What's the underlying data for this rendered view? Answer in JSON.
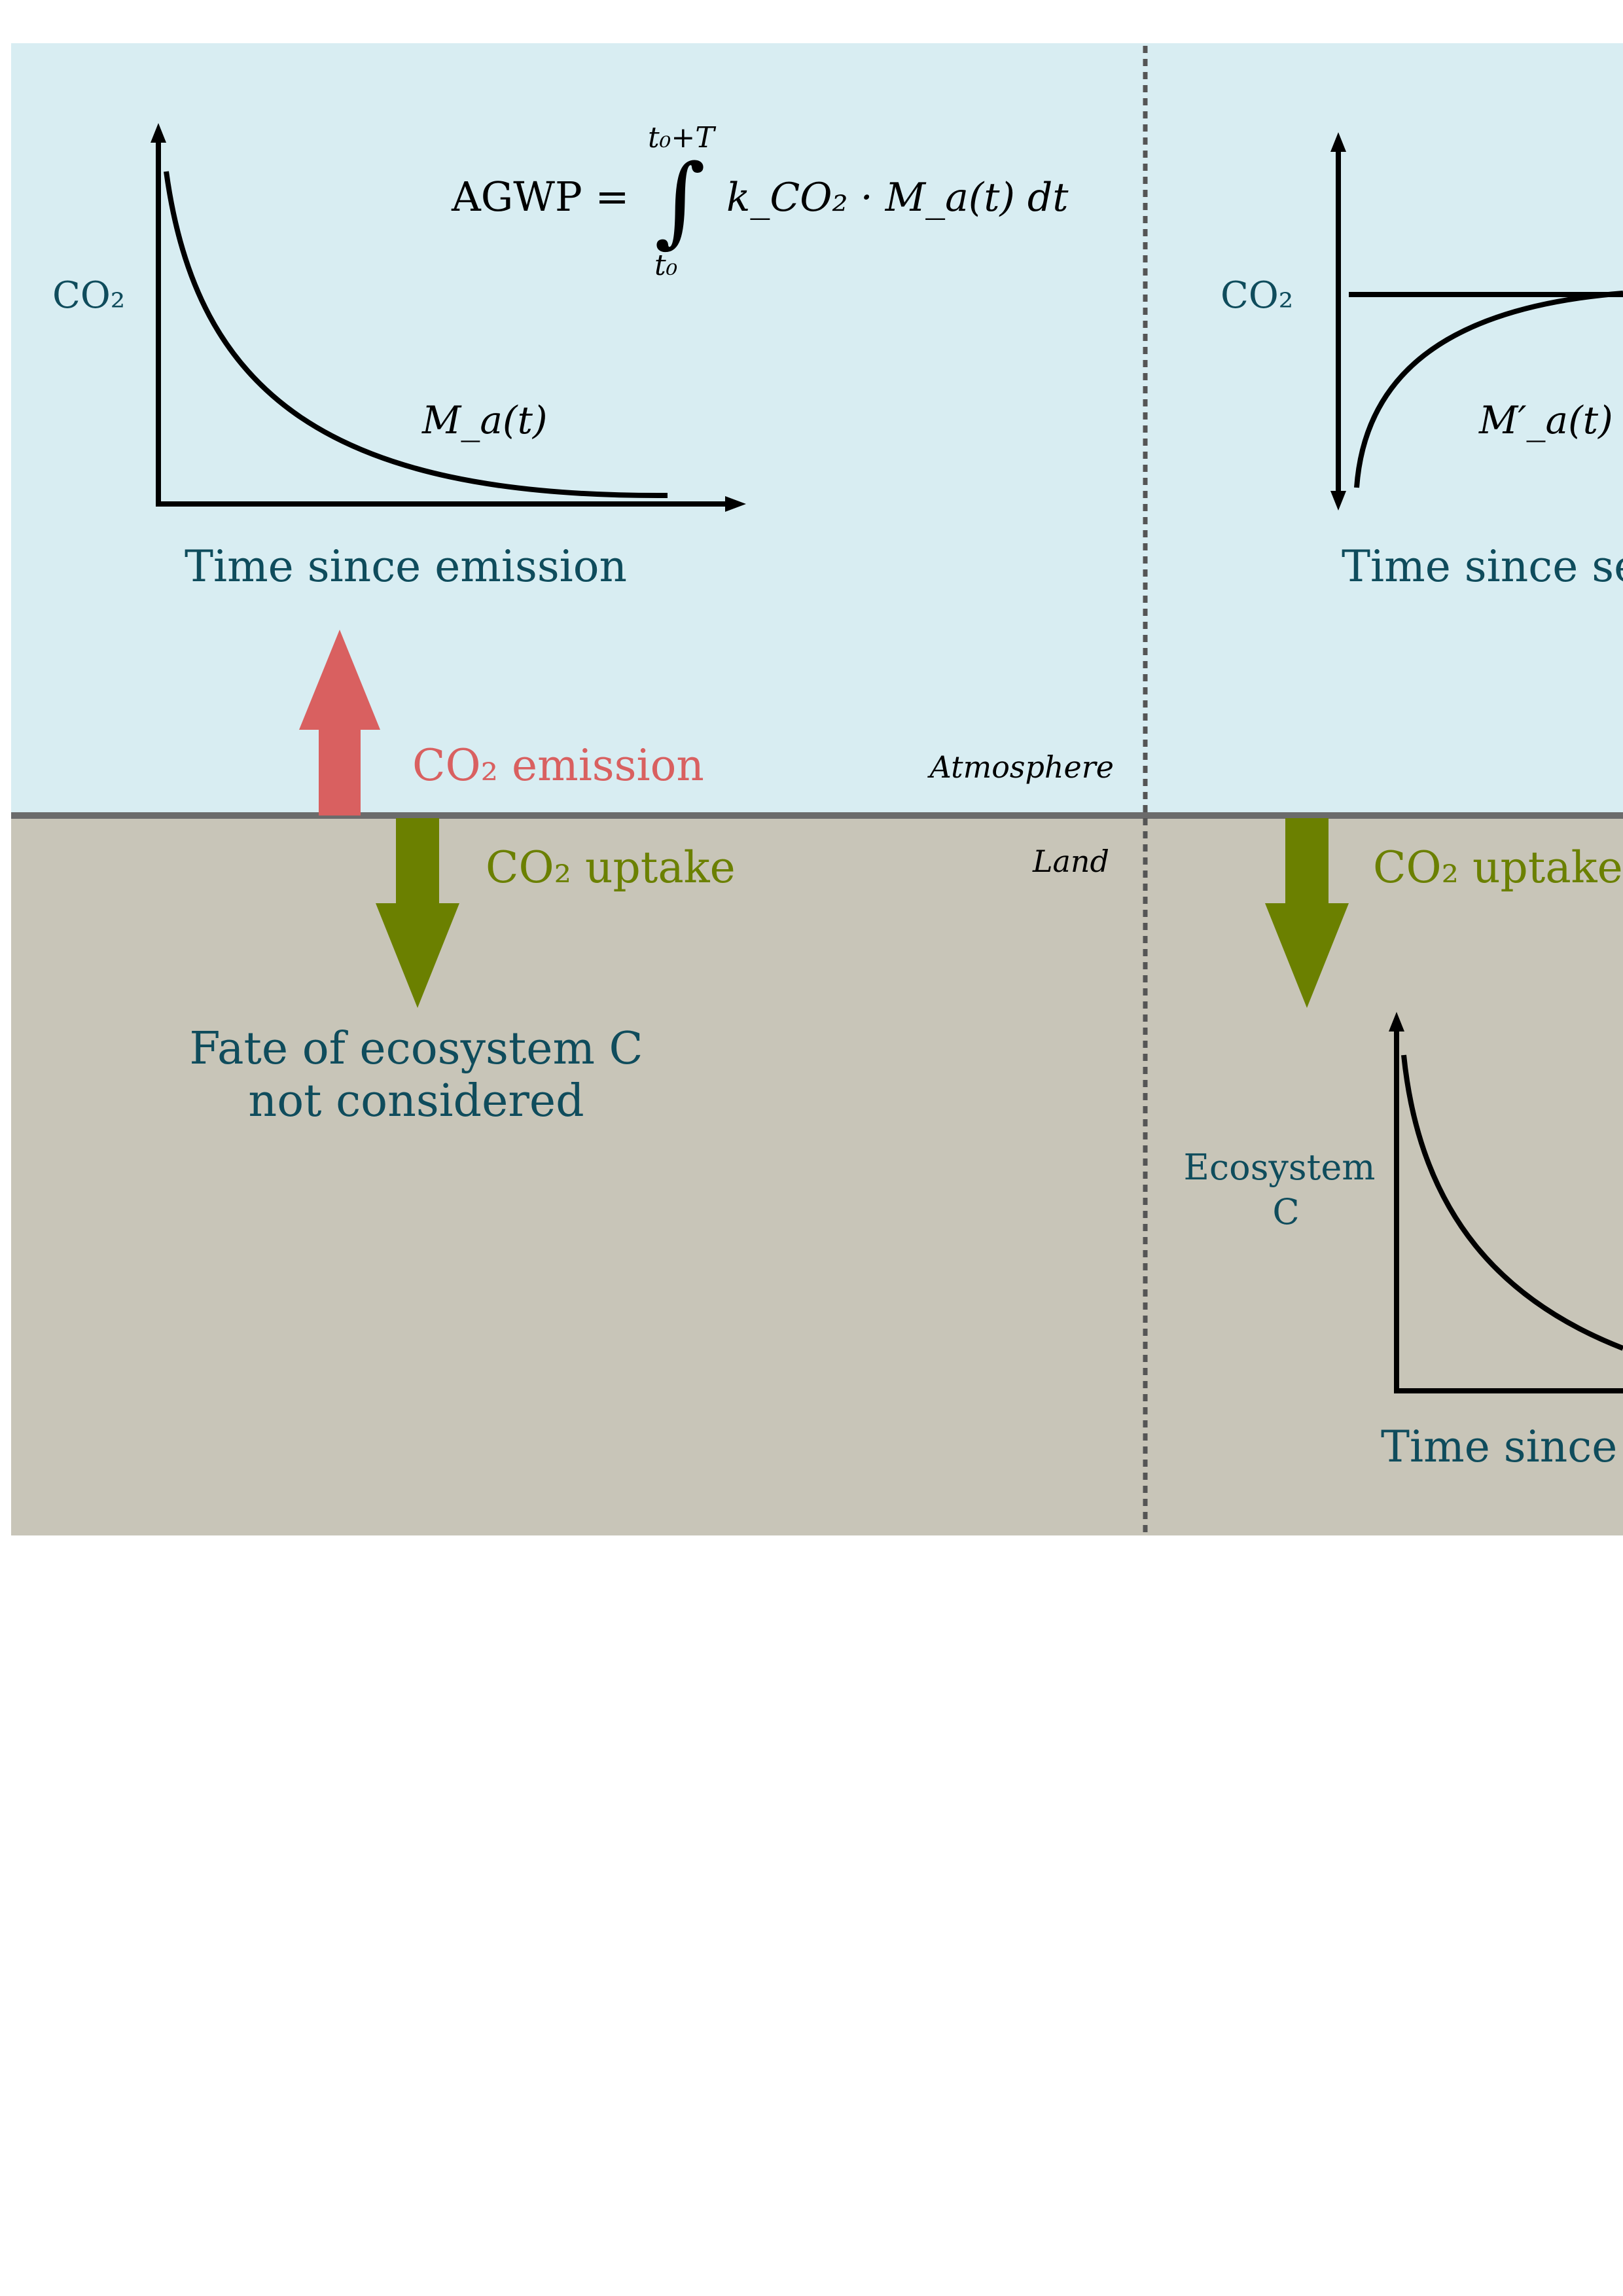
{
  "colors": {
    "atmosphere_bg": "#d8edf2",
    "land_bg": "#c8c5b8",
    "boundary": "#6b6b6b",
    "divider": "#555555",
    "text_teal": "#0f4c5c",
    "emission_red": "#d96060",
    "uptake_green": "#6b8000",
    "curve": "#000000"
  },
  "left_panel": {
    "atm_chart": {
      "y_label": "CO₂",
      "curve_label": "M_a(t)",
      "x_label": "Time since emission",
      "formula": {
        "lhs": "AGWP =",
        "upper_limit": "t₀+T",
        "lower_limit": "t₀",
        "integrand": "k_CO₂ · M_a(t) dt"
      }
    },
    "emission_label": "CO₂ emission",
    "uptake_label": "CO₂ uptake",
    "fate_text_line1": "Fate of ecosystem C",
    "fate_text_line2": "not considered"
  },
  "right_panel": {
    "atm_chart": {
      "y_label": "CO₂",
      "curve_label": "M′_a(t)",
      "x_label": "Time since se"
    },
    "uptake_label": "CO₂ uptake",
    "eco_chart": {
      "y_label_line1": "Ecosystem",
      "y_label_line2": "C",
      "x_label": "Time since"
    }
  },
  "zone_labels": {
    "atmosphere": "Atmosphere",
    "land": "Land"
  }
}
